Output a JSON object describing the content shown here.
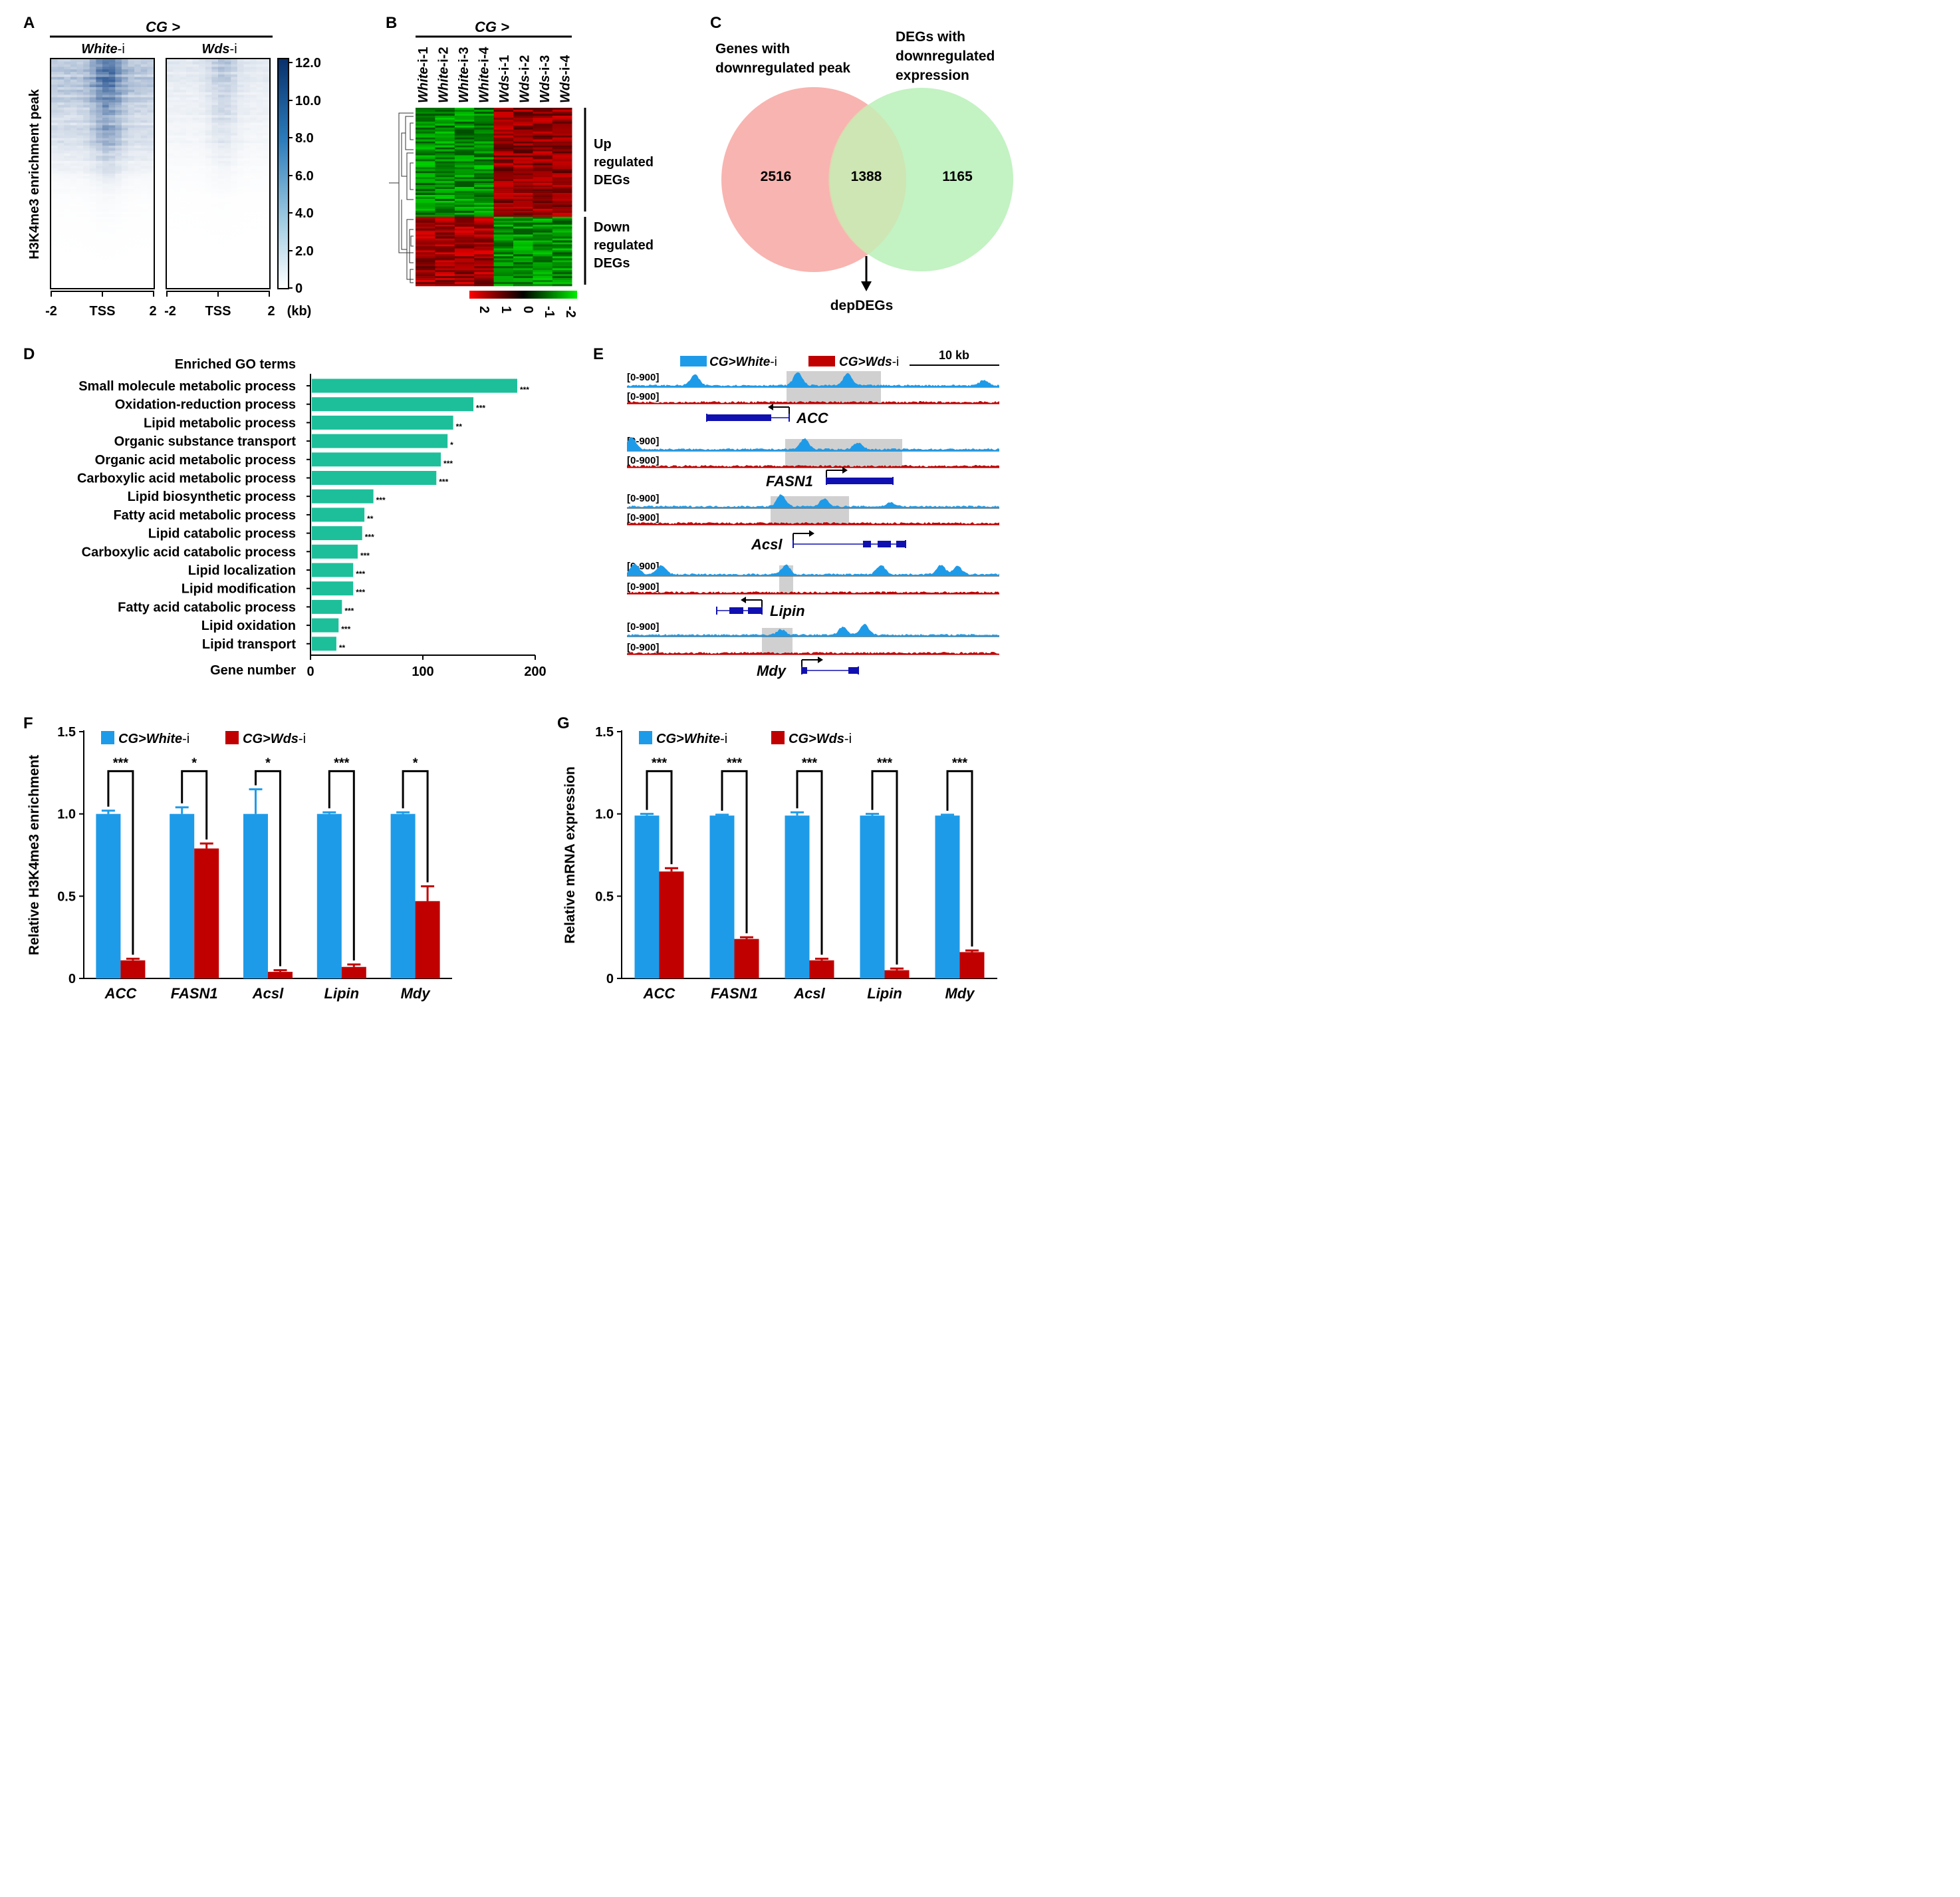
{
  "panels": {
    "A": {
      "letter": "A",
      "group": "CG >",
      "cond1": "White",
      "cond2": "Wds",
      "suffix": "-i",
      "ylabel": "H3K4me3 enrichment peak",
      "xticks": [
        "-2",
        "TSS",
        "2"
      ],
      "unit": "(kb)",
      "colorbar": [
        "12.0",
        "10.0",
        "8.0",
        "6.0",
        "4.0",
        "2.0",
        "0"
      ],
      "colors": {
        "high": "#08306b",
        "low": "#ffffff"
      }
    },
    "B": {
      "letter": "B",
      "group": "CG >",
      "samples": [
        {
          "base": "White",
          "idx": "-i-1"
        },
        {
          "base": "White",
          "idx": "-i-2"
        },
        {
          "base": "White",
          "idx": "-i-3"
        },
        {
          "base": "White",
          "idx": "-i-4"
        },
        {
          "base": "Wds",
          "idx": "-i-1"
        },
        {
          "base": "Wds",
          "idx": "-i-2"
        },
        {
          "base": "Wds",
          "idx": "-i-3"
        },
        {
          "base": "Wds",
          "idx": "-i-4"
        }
      ],
      "up": [
        "Up",
        "regulated",
        "DEGs"
      ],
      "down": [
        "Down",
        "regulated",
        "DEGs"
      ],
      "scale": [
        "2",
        "1",
        "0",
        "-1",
        "-2"
      ],
      "colors": {
        "up": "#e41a1c",
        "mid": "#000000",
        "down": "#22cc22"
      }
    },
    "C": {
      "letter": "C",
      "left_label": [
        "Genes with",
        "downregulated peak"
      ],
      "right_label": [
        "DEGs with",
        "downregulated",
        "expression"
      ],
      "left_only": "2516",
      "overlap": "1388",
      "right_only": "1165",
      "arrow_label": "depDEGs",
      "colors": {
        "left": "#f8b4b0",
        "right": "#b8f0b8"
      }
    },
    "D": {
      "letter": "D",
      "title": "Enriched GO terms",
      "xlabel": "Gene number",
      "bar_color": "#1cbf9a"
    },
    "E": {
      "letter": "E",
      "legend1": {
        "prefix": "CG>",
        "base": "White",
        "suffix": "-i"
      },
      "legend2": {
        "prefix": "CG>",
        "base": "Wds",
        "suffix": "-i"
      },
      "scale_label": "10 kb",
      "range": "[0-900]",
      "genes": [
        "ACC",
        "FASN1",
        "Acsl",
        "Lipin",
        "Mdy"
      ],
      "colors": {
        "white": "#1e9be8",
        "wds": "#c00000",
        "gene": "#1010b0",
        "highlight": "#d0d0d0"
      }
    },
    "F": {
      "letter": "F",
      "legend1": {
        "prefix": "CG>",
        "base": "White",
        "suffix": "-i"
      },
      "legend2": {
        "prefix": "CG>",
        "base": "Wds",
        "suffix": "-i"
      }
    },
    "G": {
      "letter": "G",
      "legend1": {
        "prefix": "CG>",
        "base": "White",
        "suffix": "-i"
      },
      "legend2": {
        "prefix": "CG>",
        "base": "Wds",
        "suffix": "-i"
      }
    }
  },
  "chart_data": [
    {
      "type": "bar",
      "orientation": "horizontal",
      "title": "Enriched GO terms",
      "xlabel": "Gene number",
      "xlim": [
        0,
        200
      ],
      "xticks": [
        "0",
        "100",
        "200"
      ],
      "categories": [
        "Small molecule metabolic process",
        "Oxidation-reduction process",
        "Lipid metabolic process",
        "Organic substance transport",
        "Organic acid metabolic process",
        "Carboxylic acid metabolic process",
        "Lipid biosynthetic process",
        "Fatty acid metabolic process",
        "Lipid catabolic process",
        "Carboxylic acid catabolic process",
        "Lipid localization",
        "Lipid modification",
        "Fatty acid catabolic process",
        "Lipid oxidation",
        "Lipid transport"
      ],
      "values": [
        184,
        145,
        127,
        122,
        116,
        112,
        56,
        48,
        46,
        42,
        38,
        38,
        28,
        25,
        23
      ],
      "significance": [
        "***",
        "***",
        "**",
        "*",
        "***",
        "***",
        "***",
        "**",
        "***",
        "***",
        "***",
        "***",
        "***",
        "***",
        "**"
      ]
    },
    {
      "type": "bar",
      "ylabel": "Relative H3K4me3 enrichment",
      "ylim": [
        0,
        1.5
      ],
      "yticks": [
        "0",
        "0.5",
        "1.0",
        "1.5"
      ],
      "categories": [
        "ACC",
        "FASN1",
        "Acsl",
        "Lipin",
        "Mdy"
      ],
      "series": [
        {
          "name": "CG>White-i",
          "color": "#1e9be8",
          "values": [
            1.0,
            1.0,
            1.0,
            1.0,
            1.0
          ],
          "errors": [
            0.02,
            0.04,
            0.15,
            0.01,
            0.01
          ]
        },
        {
          "name": "CG>Wds-i",
          "color": "#c00000",
          "values": [
            0.11,
            0.79,
            0.04,
            0.07,
            0.47
          ],
          "errors": [
            0.01,
            0.03,
            0.01,
            0.015,
            0.09
          ]
        }
      ],
      "significance": [
        "***",
        "*",
        "*",
        "***",
        "*"
      ]
    },
    {
      "type": "bar",
      "ylabel": "Relative mRNA expression",
      "ylim": [
        0,
        1.5
      ],
      "yticks": [
        "0",
        "0.5",
        "1.0",
        "1.5"
      ],
      "categories": [
        "ACC",
        "FASN1",
        "Acsl",
        "Lipin",
        "Mdy"
      ],
      "series": [
        {
          "name": "CG>White-i",
          "color": "#1e9be8",
          "values": [
            0.99,
            0.99,
            0.99,
            0.99,
            0.99
          ],
          "errors": [
            0.01,
            0.005,
            0.02,
            0.01,
            0.005
          ]
        },
        {
          "name": "CG>Wds-i",
          "color": "#c00000",
          "values": [
            0.65,
            0.24,
            0.11,
            0.05,
            0.16
          ],
          "errors": [
            0.02,
            0.01,
            0.01,
            0.01,
            0.01
          ]
        }
      ],
      "significance": [
        "***",
        "***",
        "***",
        "***",
        "***"
      ]
    }
  ]
}
